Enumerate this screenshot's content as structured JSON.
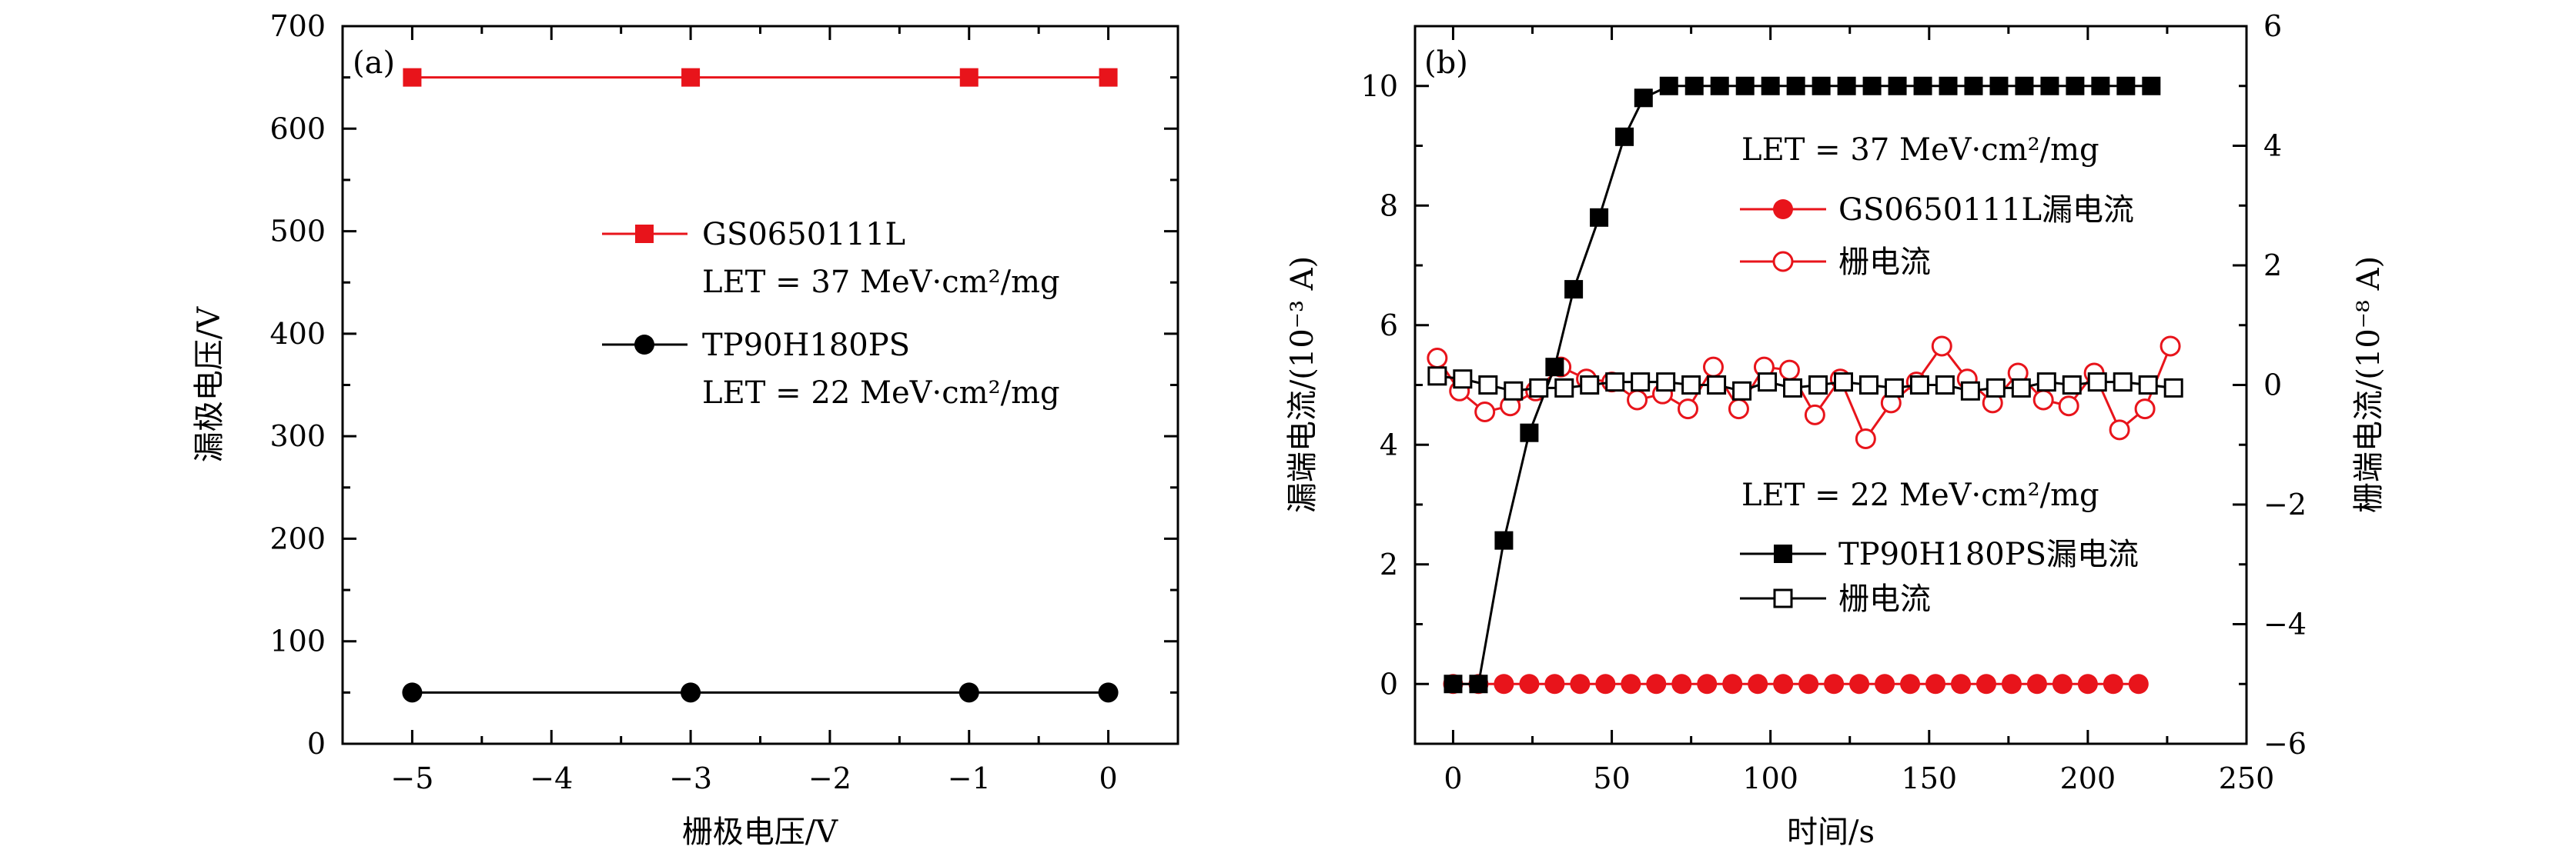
{
  "colors": {
    "red": "#e8141b",
    "black": "#000000",
    "red_line": "#e8141b",
    "black_line": "#000000"
  },
  "chart_data": [
    {
      "panel_label": "(a)",
      "type": "line",
      "xlabel": "栅极电压/V",
      "ylabel": "漏极电压/V",
      "xlim": [
        -5.5,
        0.5
      ],
      "ylim": [
        0,
        700
      ],
      "xticks": [
        -5,
        -4,
        -3,
        -2,
        -1,
        0
      ],
      "xtick_labels": [
        "−5",
        "−4",
        "−3",
        "−2",
        "−1",
        "0"
      ],
      "yticks": [
        0,
        100,
        200,
        300,
        400,
        500,
        600,
        700
      ],
      "ytick_labels": [
        "0",
        "100",
        "200",
        "300",
        "400",
        "500",
        "600",
        "700"
      ],
      "series": [
        {
          "name": "GS0650111L",
          "note": "LET = 37 MeV·cm²/mg",
          "color": "red",
          "marker": "square-filled",
          "x": [
            -5,
            -3,
            -1,
            0
          ],
          "y": [
            650,
            650,
            650,
            650
          ]
        },
        {
          "name": "TP90H180PS",
          "note": "LET = 22 MeV·cm²/mg",
          "color": "black",
          "marker": "circle-filled",
          "x": [
            -5,
            -3,
            -1,
            0
          ],
          "y": [
            50,
            50,
            50,
            50
          ]
        }
      ]
    },
    {
      "panel_label": "(b)",
      "type": "line",
      "xlabel": "时间/s",
      "ylabel": "漏端电流/(10⁻³ A)",
      "y2label": "栅端电流/(10⁻⁸ A)",
      "xlim": [
        -12,
        250
      ],
      "ylim": [
        -1,
        11
      ],
      "y2lim": [
        -6,
        6
      ],
      "xticks": [
        0,
        50,
        100,
        150,
        200,
        250
      ],
      "xtick_labels": [
        "0",
        "50",
        "100",
        "150",
        "200",
        "250"
      ],
      "yticks": [
        0,
        2,
        4,
        6,
        8,
        10
      ],
      "ytick_labels": [
        "0",
        "2",
        "4",
        "6",
        "8",
        "10"
      ],
      "y2ticks": [
        -6,
        -4,
        -2,
        0,
        2,
        4,
        6
      ],
      "y2tick_labels": [
        "−6",
        "−4",
        "−2",
        "0",
        "2",
        "4",
        "6"
      ],
      "legend_groups": [
        {
          "heading": "LET = 37 MeV·cm²/mg",
          "entries": [
            "GS0650111L漏电流",
            "栅电流"
          ]
        },
        {
          "heading": "LET = 22 MeV·cm²/mg",
          "entries": [
            "TP90H180PS漏电流",
            "栅电流"
          ]
        }
      ],
      "series": [
        {
          "name": "GS0650111L漏电流",
          "axis": "left",
          "color": "red",
          "marker": "circle-filled",
          "x": [
            0,
            8,
            16,
            24,
            32,
            40,
            48,
            56,
            64,
            72,
            80,
            88,
            96,
            104,
            112,
            120,
            128,
            136,
            144,
            152,
            160,
            168,
            176,
            184,
            192,
            200,
            208,
            216
          ],
          "y": [
            0,
            0,
            0,
            0,
            0,
            0,
            0,
            0,
            0,
            0,
            0,
            0,
            0,
            0,
            0,
            0,
            0,
            0,
            0,
            0,
            0,
            0,
            0,
            0,
            0,
            0,
            0,
            0
          ]
        },
        {
          "name": "栅电流",
          "axis": "right",
          "color": "red",
          "marker": "circle-open",
          "x": [
            -5,
            2,
            10,
            18,
            26,
            34,
            42,
            50,
            58,
            66,
            74,
            82,
            90,
            98,
            106,
            114,
            122,
            130,
            138,
            146,
            154,
            162,
            170,
            178,
            186,
            194,
            202,
            210,
            218,
            226
          ],
          "y": [
            0.45,
            -0.1,
            -0.45,
            -0.35,
            -0.1,
            0.3,
            0.1,
            0.05,
            -0.25,
            -0.15,
            -0.4,
            0.3,
            -0.4,
            0.3,
            0.25,
            -0.5,
            0.1,
            -0.9,
            -0.3,
            0.05,
            0.65,
            0.1,
            -0.3,
            0.2,
            -0.25,
            -0.35,
            0.2,
            -0.75,
            -0.4,
            0.65
          ]
        },
        {
          "name": "TP90H180PS漏电流",
          "axis": "left",
          "color": "black",
          "marker": "square-filled",
          "x": [
            0,
            8,
            16,
            24,
            32,
            38,
            46,
            54,
            60,
            68,
            76,
            84,
            92,
            100,
            108,
            116,
            124,
            132,
            140,
            148,
            156,
            164,
            172,
            180,
            188,
            196,
            204,
            212,
            220
          ],
          "y": [
            0,
            0,
            2.4,
            4.2,
            5.3,
            6.6,
            7.8,
            9.15,
            9.8,
            10,
            10,
            10,
            10,
            10,
            10,
            10,
            10,
            10,
            10,
            10,
            10,
            10,
            10,
            10,
            10,
            10,
            10,
            10,
            10
          ]
        },
        {
          "name": "栅电流",
          "axis": "right",
          "color": "black",
          "marker": "square-open",
          "x": [
            -5,
            3,
            11,
            19,
            27,
            35,
            43,
            51,
            59,
            67,
            75,
            83,
            91,
            99,
            107,
            115,
            123,
            131,
            139,
            147,
            155,
            163,
            171,
            179,
            187,
            195,
            203,
            211,
            219,
            227
          ],
          "y": [
            0.15,
            0.1,
            0,
            -0.1,
            -0.05,
            -0.05,
            0,
            0.05,
            0.05,
            0.05,
            0,
            0,
            -0.1,
            0.05,
            -0.05,
            0,
            0.05,
            0,
            -0.05,
            0,
            0,
            -0.1,
            -0.05,
            -0.05,
            0.05,
            0,
            0.05,
            0.05,
            0,
            -0.05
          ]
        }
      ]
    }
  ]
}
